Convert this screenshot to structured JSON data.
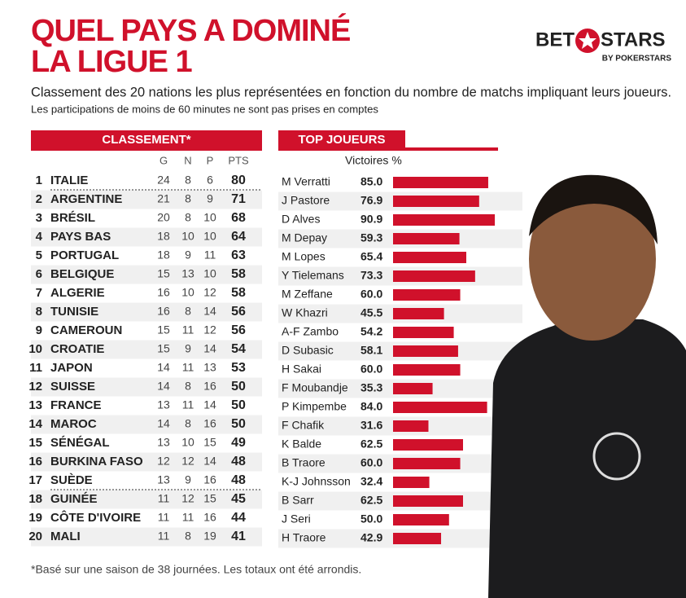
{
  "header": {
    "title_line1": "QUEL PAYS A DOMINÉ",
    "title_line2": "LA LIGUE 1",
    "subtitle": "Classement des 20 nations les plus représentées en fonction du nombre de matchs impliquant leurs joueurs.",
    "note": "Les participations de moins de 60 minutes ne sont pas prises en comptes"
  },
  "logo": {
    "left": "BET",
    "right": "STARS",
    "sub": "BY POKERSTARS"
  },
  "table": {
    "title": "CLASSEMENT*",
    "columns": [
      "G",
      "N",
      "P",
      "PTS"
    ],
    "rows": [
      [
        1,
        "ITALIE",
        24,
        8,
        6,
        80
      ],
      [
        2,
        "ARGENTINE",
        21,
        8,
        9,
        71
      ],
      [
        3,
        "BRÉSIL",
        20,
        8,
        10,
        68
      ],
      [
        4,
        "PAYS BAS",
        18,
        10,
        10,
        64
      ],
      [
        5,
        "PORTUGAL",
        18,
        9,
        11,
        63
      ],
      [
        6,
        "BELGIQUE",
        15,
        13,
        10,
        58
      ],
      [
        7,
        "ALGERIE",
        16,
        10,
        12,
        58
      ],
      [
        8,
        "TUNISIE",
        16,
        8,
        14,
        56
      ],
      [
        9,
        "CAMEROUN",
        15,
        11,
        12,
        56
      ],
      [
        10,
        "CROATIE",
        15,
        9,
        14,
        54
      ],
      [
        11,
        "JAPON",
        14,
        11,
        13,
        53
      ],
      [
        12,
        "SUISSE",
        14,
        8,
        16,
        50
      ],
      [
        13,
        "FRANCE",
        13,
        11,
        14,
        50
      ],
      [
        14,
        "MAROC",
        14,
        8,
        16,
        50
      ],
      [
        15,
        "SÉNÉGAL",
        13,
        10,
        15,
        49
      ],
      [
        16,
        "BURKINA FASO",
        12,
        12,
        14,
        48
      ],
      [
        17,
        "SUÈDE",
        13,
        9,
        16,
        48
      ],
      [
        18,
        "GUINÉE",
        11,
        12,
        15,
        45
      ],
      [
        19,
        "CÔTE D'IVOIRE",
        11,
        11,
        16,
        44
      ],
      [
        20,
        "MALI",
        11,
        8,
        19,
        41
      ]
    ]
  },
  "chart_data": {
    "type": "bar",
    "title": "TOP JOUEURS",
    "value_axis_label": "Victoires %",
    "color": "#d0112b",
    "categories": [
      "M Verratti",
      "J Pastore",
      "D Alves",
      "M Depay",
      "M Lopes",
      "Y Tielemans",
      "M Zeffane",
      "W Khazri",
      "A-F Zambo",
      "D Subasic",
      "H Sakai",
      "F Moubandje",
      "P Kimpembe",
      "F Chafik",
      "K Balde",
      "B Traore",
      "K-J Johnsson",
      "B Sarr",
      "J Seri",
      "H Traore"
    ],
    "values": [
      85.0,
      76.9,
      90.9,
      59.3,
      65.4,
      73.3,
      60.0,
      45.5,
      54.2,
      58.1,
      60.0,
      35.3,
      84.0,
      31.6,
      62.5,
      60.0,
      32.4,
      62.5,
      50.0,
      42.9
    ],
    "value_labels": [
      "85.0",
      "76.9",
      "90.9",
      "59.3",
      "65.4",
      "73.3",
      "60.0",
      "45.5",
      "54.2",
      "58.1",
      "60.0",
      "35.3",
      "84.0",
      "31.6",
      "62.5",
      "60.0",
      "32.4",
      "62.5",
      "50.0",
      "42.9"
    ]
  },
  "footnote": "*Basé sur une saison de 38 journées. Les totaux ont été arrondis."
}
